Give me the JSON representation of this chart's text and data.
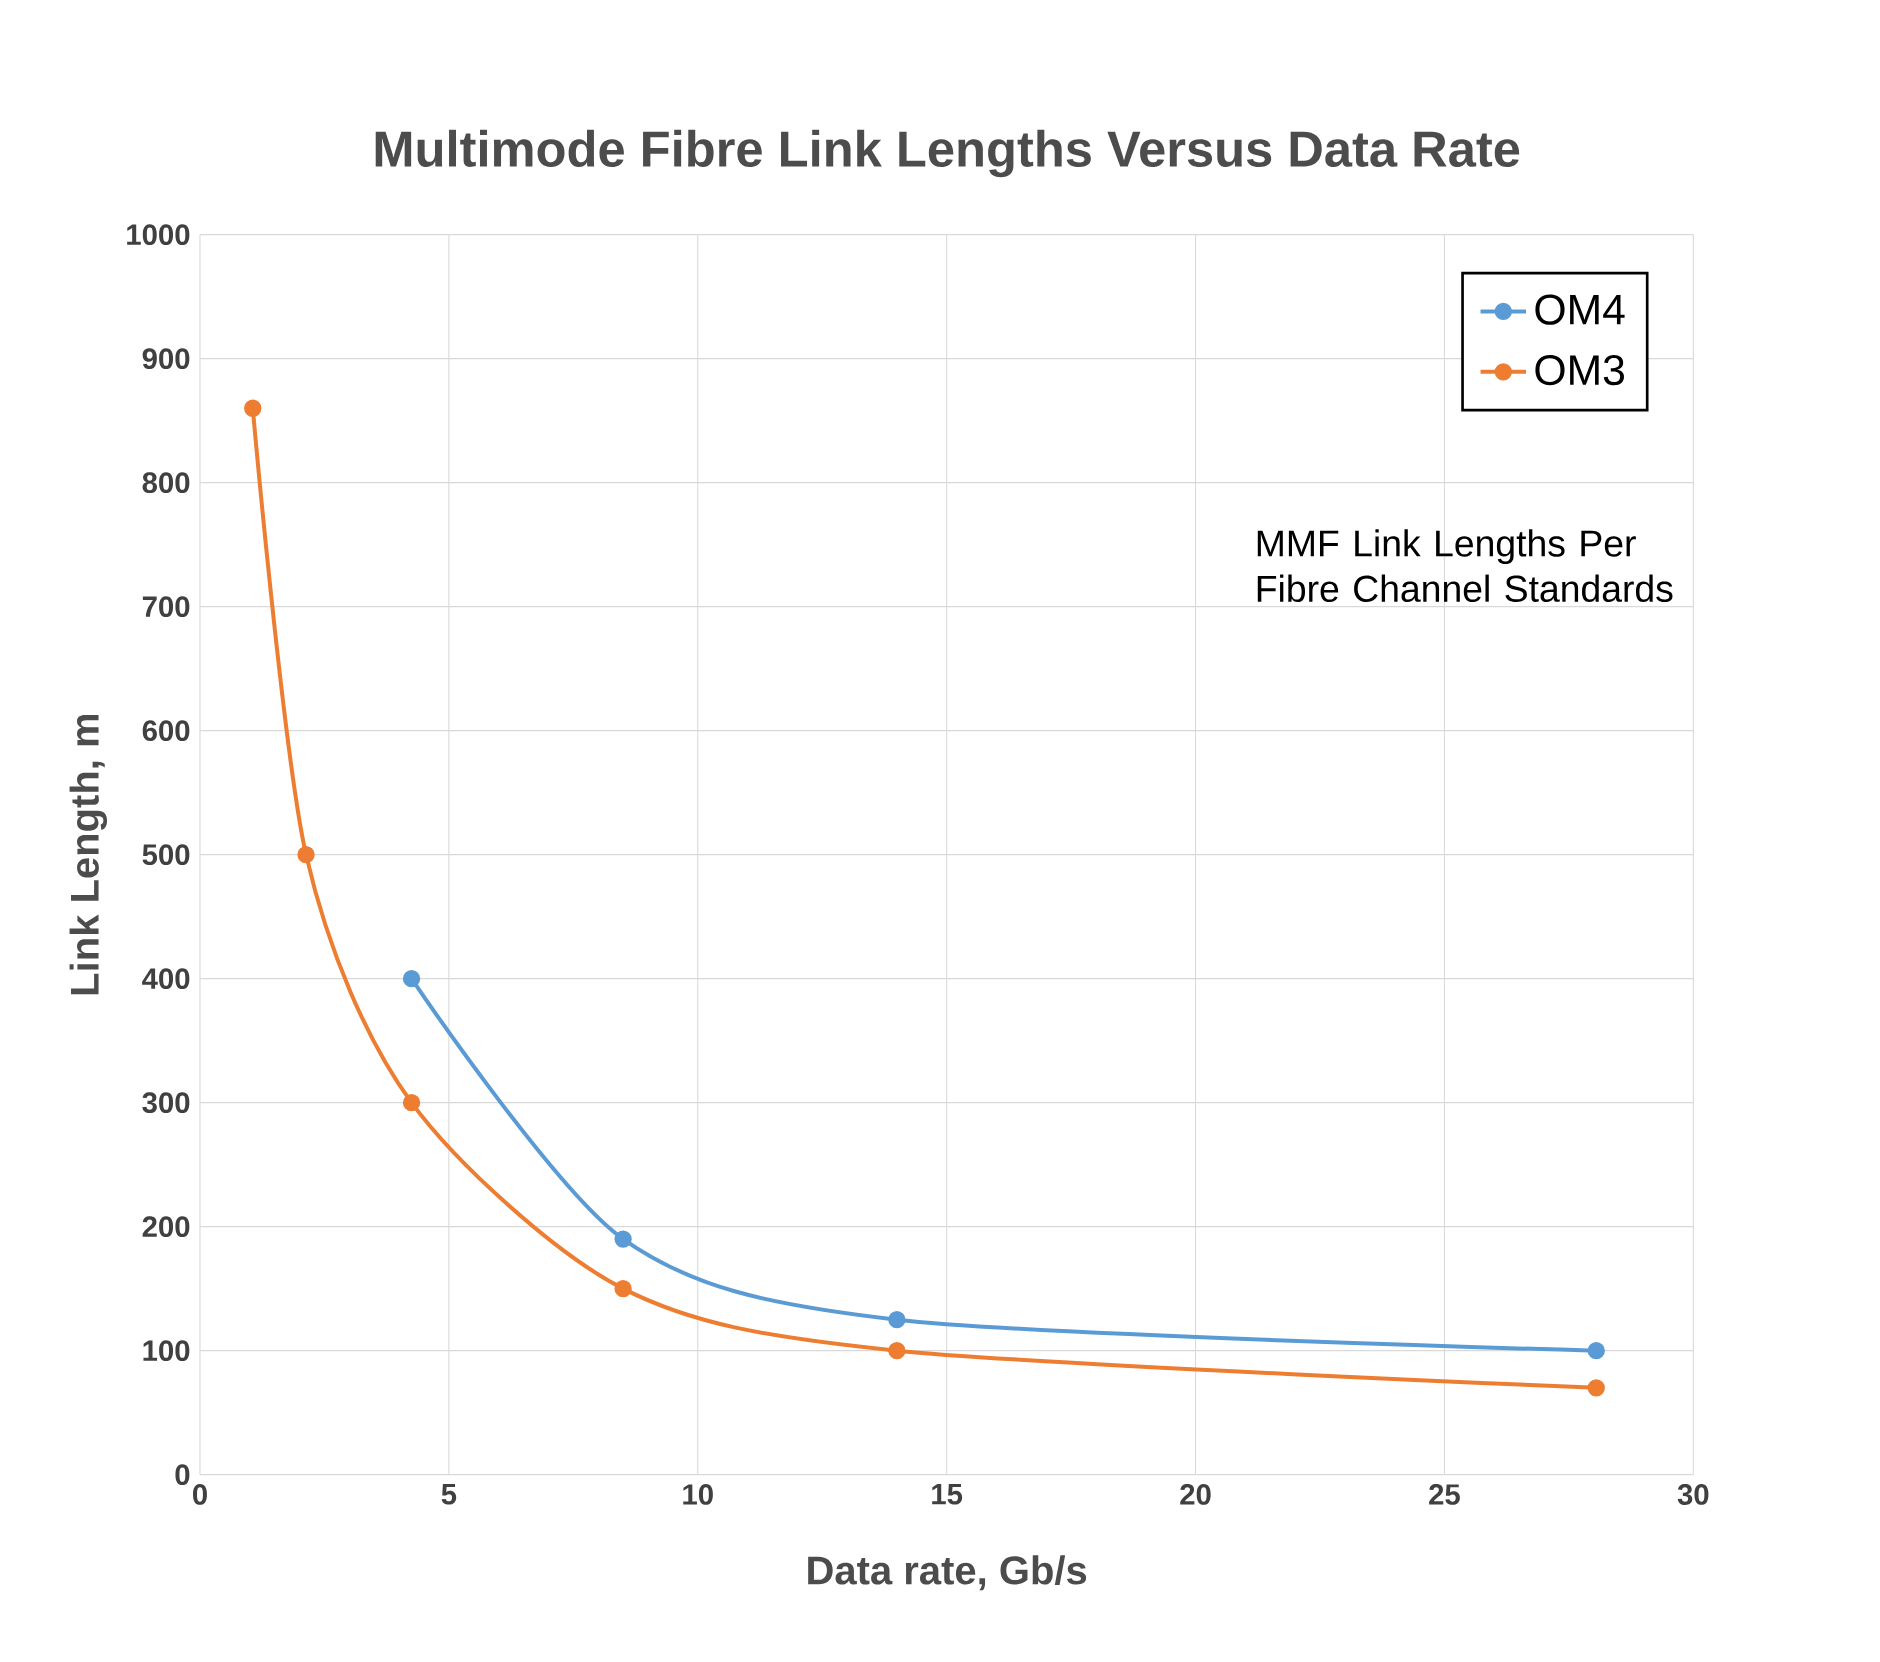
{
  "chart_data": {
    "type": "line",
    "title": "Multimode Fibre Link Lengths Versus Data Rate",
    "xlabel": "Data rate, Gb/s",
    "ylabel": "Link Length, m",
    "series": [
      {
        "name": "OM4",
        "color": "#5b9bd5",
        "x": [
          4.25,
          8.5,
          14,
          28.05
        ],
        "values": [
          400,
          190,
          125,
          100
        ]
      },
      {
        "name": "OM3",
        "color": "#ed7d31",
        "x": [
          1.06,
          2.13,
          4.25,
          8.5,
          14,
          28.05
        ],
        "values": [
          860,
          500,
          300,
          150,
          100,
          70
        ]
      }
    ],
    "xlim": [
      0,
      30
    ],
    "xticks": [
      0,
      5,
      10,
      15,
      20,
      25,
      30
    ],
    "ylim": [
      0,
      1000
    ],
    "yticks": [
      0,
      100,
      200,
      300,
      400,
      500,
      600,
      700,
      800,
      900,
      1000
    ],
    "grid": true,
    "legend": "top right",
    "marker": "circle",
    "line_style": "solid",
    "annotations": [
      "MMF Link Lengths Per Fibre Channel Standards"
    ]
  }
}
